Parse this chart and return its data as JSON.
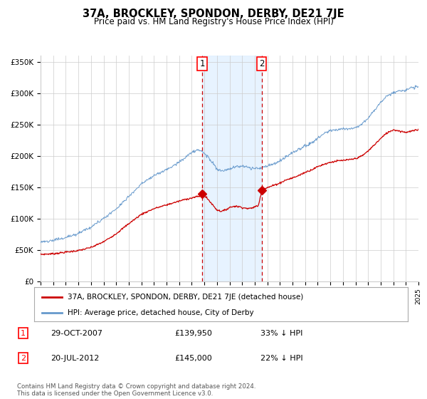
{
  "title": "37A, BROCKLEY, SPONDON, DERBY, DE21 7JE",
  "subtitle": "Price paid vs. HM Land Registry's House Price Index (HPI)",
  "x_start_year": 1995,
  "x_end_year": 2025,
  "ylim": [
    0,
    360000
  ],
  "yticks": [
    0,
    50000,
    100000,
    150000,
    200000,
    250000,
    300000,
    350000
  ],
  "sale1": {
    "date": "29-OCT-2007",
    "price": 139950,
    "label": "1",
    "pct": "33%",
    "direction": "↓"
  },
  "sale2": {
    "date": "20-JUL-2012",
    "price": 145000,
    "label": "2",
    "pct": "22%",
    "direction": "↓"
  },
  "sale1_x": 2007.83,
  "sale2_x": 2012.55,
  "hpi_color": "#6699cc",
  "price_color": "#cc0000",
  "shade_color": "#ddeeff",
  "dashed_color": "#cc0000",
  "legend_label_price": "37A, BROCKLEY, SPONDON, DERBY, DE21 7JE (detached house)",
  "legend_label_hpi": "HPI: Average price, detached house, City of Derby",
  "footnote": "Contains HM Land Registry data © Crown copyright and database right 2024.\nThis data is licensed under the Open Government Licence v3.0.",
  "bg_color": "#ffffff",
  "plot_bg_color": "#ffffff"
}
